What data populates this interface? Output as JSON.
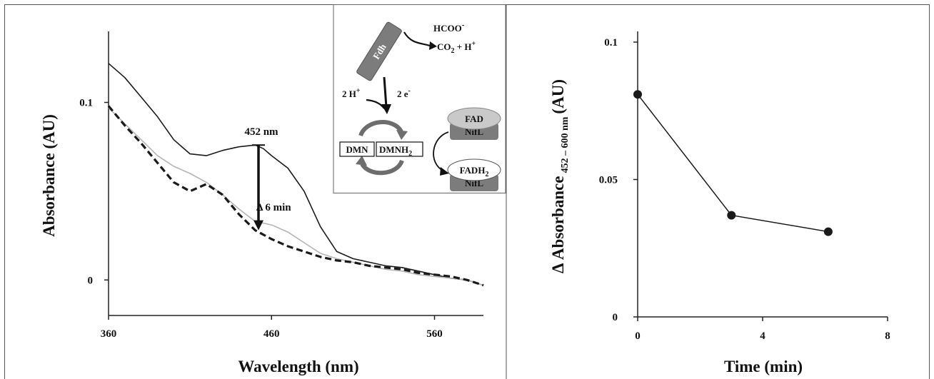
{
  "chart_data": [
    {
      "type": "line",
      "xlabel": "Wavelength (nm)",
      "ylabel": "Absorbance (AU)",
      "xlim": [
        360,
        590
      ],
      "ylim": [
        -0.02,
        0.14
      ],
      "x_ticks": [
        360,
        460,
        560
      ],
      "y_ticks": [
        0,
        0.1
      ],
      "grid": false,
      "series": [
        {
          "style": "solid-black",
          "x": [
            360,
            370,
            380,
            390,
            400,
            410,
            420,
            430,
            440,
            450,
            455,
            460,
            470,
            480,
            490,
            500,
            510,
            520,
            530,
            540,
            550,
            560,
            570,
            580,
            590
          ],
          "y": [
            0.122,
            0.114,
            0.103,
            0.092,
            0.079,
            0.071,
            0.07,
            0.073,
            0.075,
            0.076,
            0.074,
            0.07,
            0.063,
            0.05,
            0.03,
            0.016,
            0.012,
            0.01,
            0.008,
            0.007,
            0.005,
            0.003,
            0.001,
            0.0,
            -0.003
          ]
        },
        {
          "style": "solid-gray",
          "x": [
            360,
            370,
            380,
            390,
            400,
            410,
            420,
            430,
            440,
            450,
            460,
            470,
            480,
            490,
            500,
            510,
            520,
            530,
            540,
            550,
            560,
            570,
            580,
            590
          ],
          "y": [
            0.097,
            0.088,
            0.079,
            0.07,
            0.064,
            0.06,
            0.055,
            0.048,
            0.04,
            0.033,
            0.031,
            0.027,
            0.021,
            0.015,
            0.012,
            0.01,
            0.008,
            0.006,
            0.005,
            0.003,
            0.002,
            0.001,
            0.0,
            -0.003
          ]
        },
        {
          "style": "dashed-black",
          "x": [
            360,
            370,
            380,
            390,
            400,
            410,
            420,
            430,
            440,
            450,
            460,
            470,
            480,
            490,
            500,
            510,
            520,
            530,
            540,
            550,
            560,
            570,
            580,
            590
          ],
          "y": [
            0.098,
            0.087,
            0.077,
            0.066,
            0.055,
            0.05,
            0.054,
            0.048,
            0.037,
            0.028,
            0.023,
            0.019,
            0.016,
            0.013,
            0.011,
            0.01,
            0.008,
            0.007,
            0.006,
            0.004,
            0.003,
            0.002,
            0.0,
            -0.003
          ]
        }
      ],
      "annotations": {
        "wavelength_label": "452 nm",
        "wavelength_x": 452,
        "arrow_from_y": 0.076,
        "arrow_to_y": 0.028,
        "delta_label": "Δ 6 min"
      }
    },
    {
      "type": "line",
      "xlabel": "Time (min)",
      "ylabel_main": "Δ Absorbance",
      "ylabel_sub": "452 – 600 nm",
      "ylabel_unit": "(AU)",
      "xlim": [
        0,
        8
      ],
      "ylim": [
        0,
        0.1
      ],
      "x_ticks": [
        0,
        4,
        8
      ],
      "y_ticks": [
        0,
        0.05,
        0.1
      ],
      "y_tick_labels": [
        "0",
        "0.05",
        "0.1"
      ],
      "grid": false,
      "series": [
        {
          "x": [
            0,
            3,
            6.1
          ],
          "y": [
            0.081,
            0.037,
            0.031
          ]
        }
      ]
    }
  ],
  "scheme": {
    "fdh_label": "Fdh",
    "formate_label": "HCOO",
    "formate_charge": "-",
    "co2_label": "CO",
    "co2_sub": "2",
    "co2_rest": " + H",
    "co2_sup": "+",
    "protons_label": "2 H",
    "protons_sup": "+",
    "electrons_label": "2 e",
    "electrons_sup": "-",
    "dmn_label": "DMN",
    "dmnh2_label": "DMNH",
    "dmnh2_sub": "2",
    "fad_label": "FAD",
    "fadh2_label": "FADH",
    "fadh2_sub": "2",
    "nifl_label": "NifL",
    "nifl2_label": "NifL"
  }
}
